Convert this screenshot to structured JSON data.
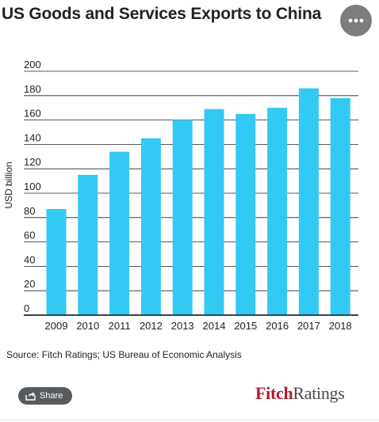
{
  "header": {
    "title": "US Goods and Services Exports to China",
    "menu_icon": "more-dots-icon"
  },
  "chart_data": {
    "type": "bar",
    "title": "US Goods and Services Exports to China",
    "ylabel": "USD billion",
    "xlabel": "",
    "categories": [
      "2009",
      "2010",
      "2011",
      "2012",
      "2013",
      "2014",
      "2015",
      "2016",
      "2017",
      "2018"
    ],
    "values": [
      87,
      115,
      134,
      145,
      160,
      169,
      165,
      170,
      186,
      178
    ],
    "ylim": [
      0,
      200
    ],
    "yticks": [
      0,
      20,
      40,
      60,
      80,
      100,
      120,
      140,
      160,
      180,
      200
    ],
    "grid": true,
    "legend": "none",
    "bar_color": "#33c9f5",
    "grid_color": "#222222"
  },
  "footer": {
    "source": "Source: Fitch Ratings; US Bureau of Economic Analysis",
    "share_label": "Share",
    "share_icon": "share-arrow-icon",
    "logo_part1": "Fitch",
    "logo_part2": "Ratings",
    "logo_color_1": "#b01c2e",
    "logo_color_2": "#4a4a4a"
  }
}
